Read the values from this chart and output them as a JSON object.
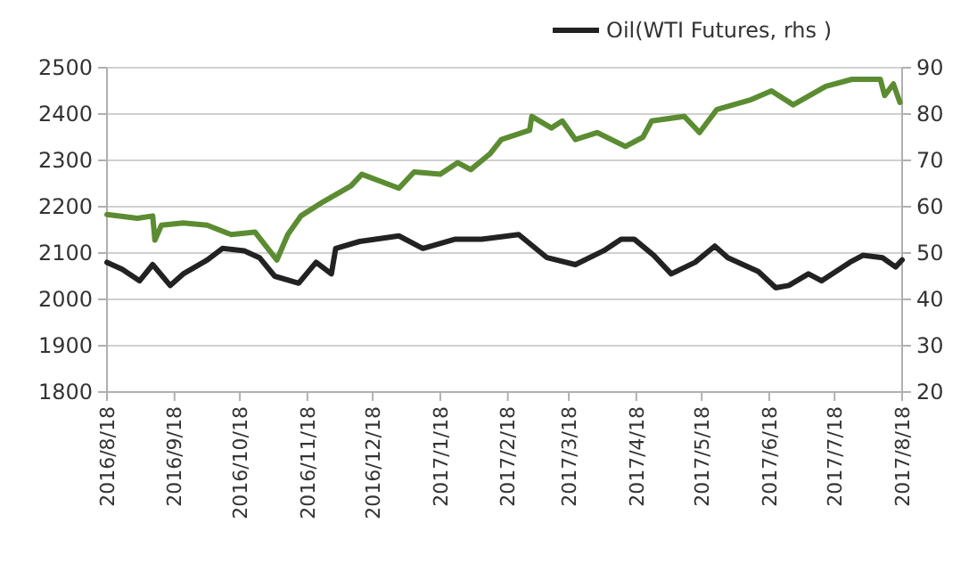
{
  "chart_data": {
    "type": "line",
    "legend": "top",
    "grid": "y",
    "line_style": "solid",
    "xlim": [
      "2016-08-18",
      "2017-08-18"
    ],
    "xticks": [
      {
        "value": "2016-08-18",
        "label": "2016/8/18"
      },
      {
        "value": "2016-09-18",
        "label": "2016/9/18"
      },
      {
        "value": "2016-10-18",
        "label": "2016/10/18"
      },
      {
        "value": "2016-11-18",
        "label": "2016/11/18"
      },
      {
        "value": "2016-12-18",
        "label": "2016/12/18"
      },
      {
        "value": "2017-01-18",
        "label": "2017/1/18"
      },
      {
        "value": "2017-02-18",
        "label": "2017/2/18"
      },
      {
        "value": "2017-03-18",
        "label": "2017/3/18"
      },
      {
        "value": "2017-04-18",
        "label": "2017/4/18"
      },
      {
        "value": "2017-05-18",
        "label": "2017/5/18"
      },
      {
        "value": "2017-06-18",
        "label": "2017/6/18"
      },
      {
        "value": "2017-07-18",
        "label": "2017/7/18"
      },
      {
        "value": "2017-08-18",
        "label": "2017/8/18"
      }
    ],
    "ylim": [
      1800,
      2500
    ],
    "yticks": [
      1800,
      1900,
      2000,
      2100,
      2200,
      2300,
      2400,
      2500
    ],
    "y2lim": [
      20,
      90
    ],
    "y2ticks": [
      20,
      30,
      40,
      50,
      60,
      70,
      80,
      90
    ],
    "series": [
      {
        "color": "#5b8c32",
        "x": [
          "2016-08-18",
          "2016-09-01",
          "2016-09-08",
          "2016-09-09",
          "2016-09-12",
          "2016-09-22",
          "2016-10-03",
          "2016-10-14",
          "2016-10-25",
          "2016-11-04",
          "2016-11-09",
          "2016-11-15",
          "2016-11-25",
          "2016-12-08",
          "2016-12-13",
          "2016-12-30",
          "2017-01-06",
          "2017-01-18",
          "2017-01-26",
          "2017-02-01",
          "2017-02-10",
          "2017-02-15",
          "2017-02-28",
          "2017-03-01",
          "2017-03-10",
          "2017-03-15",
          "2017-03-21",
          "2017-03-31",
          "2017-04-13",
          "2017-04-21",
          "2017-04-25",
          "2017-05-10",
          "2017-05-17",
          "2017-05-25",
          "2017-06-09",
          "2017-06-19",
          "2017-06-29",
          "2017-07-14",
          "2017-07-26",
          "2017-08-08",
          "2017-08-10",
          "2017-08-14",
          "2017-08-17"
        ],
        "values": [
          2183,
          2175,
          2180,
          2128,
          2160,
          2165,
          2160,
          2140,
          2145,
          2085,
          2140,
          2180,
          2210,
          2245,
          2270,
          2240,
          2275,
          2270,
          2295,
          2280,
          2315,
          2345,
          2365,
          2395,
          2370,
          2385,
          2345,
          2360,
          2330,
          2350,
          2385,
          2395,
          2360,
          2410,
          2430,
          2450,
          2420,
          2460,
          2475,
          2475,
          2440,
          2465,
          2425
        ]
      },
      {
        "name": "Oil(WTI Futures, rhs )",
        "color": "#222222",
        "axis": "y2",
        "x": [
          "2016-08-18",
          "2016-08-25",
          "2016-09-02",
          "2016-09-08",
          "2016-09-16",
          "2016-09-22",
          "2016-10-03",
          "2016-10-10",
          "2016-10-20",
          "2016-10-27",
          "2016-11-03",
          "2016-11-14",
          "2016-11-22",
          "2016-11-29",
          "2016-12-01",
          "2016-12-12",
          "2016-12-30",
          "2017-01-10",
          "2017-01-25",
          "2017-02-06",
          "2017-02-15",
          "2017-02-23",
          "2017-03-08",
          "2017-03-21",
          "2017-04-03",
          "2017-04-11",
          "2017-04-17",
          "2017-04-26",
          "2017-05-04",
          "2017-05-15",
          "2017-05-24",
          "2017-05-30",
          "2017-06-13",
          "2017-06-21",
          "2017-06-27",
          "2017-07-06",
          "2017-07-12",
          "2017-07-25",
          "2017-07-31",
          "2017-08-09",
          "2017-08-15",
          "2017-08-18"
        ],
        "values": [
          48,
          46.5,
          44,
          47.5,
          43,
          45.5,
          48.5,
          51,
          50.5,
          49,
          45,
          43.5,
          48,
          45.5,
          51,
          52.5,
          53.7,
          51,
          53,
          53,
          53.5,
          54,
          49,
          47.5,
          50.5,
          53,
          53,
          49.5,
          45.5,
          48,
          51.5,
          49,
          46,
          42.5,
          43,
          45.5,
          44,
          48,
          49.5,
          49,
          47,
          48.5
        ]
      }
    ]
  }
}
